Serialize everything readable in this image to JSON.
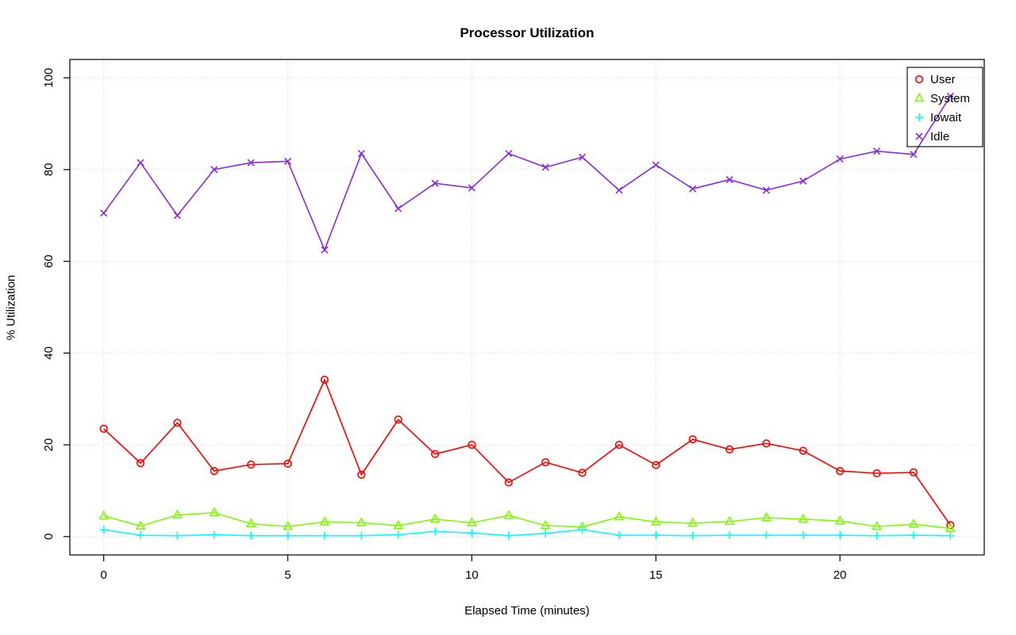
{
  "chart_data": {
    "type": "line",
    "title": "Processor Utilization",
    "xlabel": "Elapsed Time (minutes)",
    "ylabel": "% Utilization",
    "xlim": [
      0,
      23
    ],
    "ylim": [
      0,
      100
    ],
    "xticks": [
      0,
      5,
      10,
      15,
      20
    ],
    "yticks": [
      0,
      20,
      40,
      60,
      80,
      100
    ],
    "grid": true,
    "grid_color": "#d3d3d3",
    "legend_position": "top-right",
    "x": [
      0,
      1,
      2,
      3,
      4,
      5,
      6,
      7,
      8,
      9,
      10,
      11,
      12,
      13,
      14,
      15,
      16,
      17,
      18,
      19,
      20,
      21,
      22,
      23
    ],
    "series": [
      {
        "name": "User",
        "color": "#ff0000",
        "marker": "circle",
        "values": [
          23.5,
          16,
          24.8,
          14.3,
          15.7,
          15.9,
          34.2,
          13.5,
          25.5,
          18,
          20,
          11.8,
          16.2,
          13.9,
          20,
          15.6,
          21.2,
          19,
          20.3,
          18.7,
          14.3,
          13.8,
          14,
          2.5
        ]
      },
      {
        "name": "System",
        "color": "#7cfc00",
        "marker": "triangle",
        "values": [
          4.5,
          2.3,
          4.7,
          5.2,
          2.8,
          2.2,
          3.2,
          3.0,
          2.4,
          3.8,
          3.0,
          4.6,
          2.4,
          2.1,
          4.3,
          3.2,
          2.9,
          3.3,
          4.1,
          3.8,
          3.4,
          2.2,
          2.7,
          1.8
        ]
      },
      {
        "name": "Iowait",
        "color": "#00ffff",
        "marker": "plus",
        "values": [
          1.5,
          0.3,
          0.2,
          0.4,
          0.2,
          0.2,
          0.2,
          0.2,
          0.4,
          1.1,
          0.8,
          0.2,
          0.7,
          1.5,
          0.3,
          0.3,
          0.2,
          0.3,
          0.3,
          0.3,
          0.3,
          0.2,
          0.3,
          0.2
        ]
      },
      {
        "name": "Idle",
        "color": "#8a2be2",
        "marker": "x",
        "values": [
          70.5,
          81.5,
          70,
          80,
          81.5,
          81.8,
          62.5,
          83.5,
          71.5,
          77,
          76,
          83.5,
          80.5,
          82.7,
          75.5,
          81,
          75.8,
          77.8,
          75.5,
          77.5,
          82.3,
          84,
          83.3,
          96
        ]
      }
    ]
  }
}
